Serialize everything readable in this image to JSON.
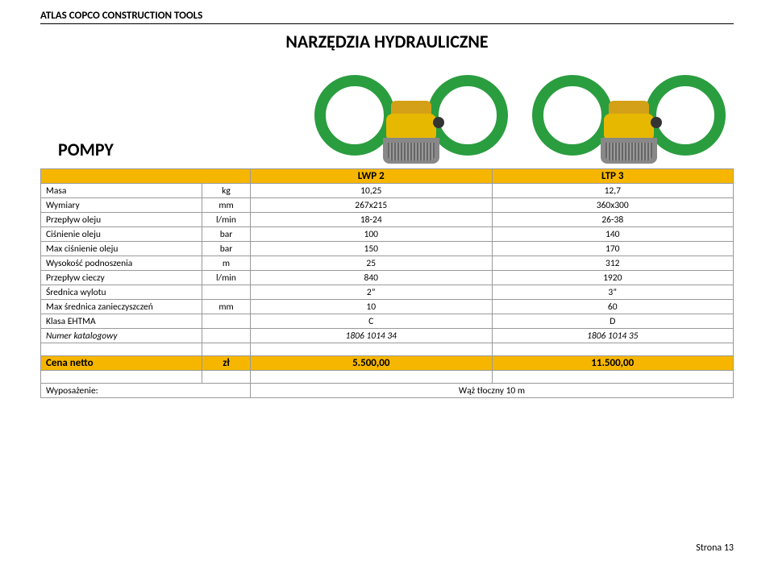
{
  "company_header": "ATLAS COPCO CONSTRUCTION TOOLS",
  "main_title": "NARZĘDZIA HYDRAULICZNE",
  "section_title": "POMPY",
  "models": {
    "m1": "LWP 2",
    "m2": "LTP 3"
  },
  "rows": {
    "masa": {
      "label": "Masa",
      "unit": "kg",
      "v1": "10,25",
      "v2": "12,7"
    },
    "wym": {
      "label": "Wymiary",
      "unit": "mm",
      "v1": "267x215",
      "v2": "360x300"
    },
    "przepo": {
      "label": "Przepływ oleju",
      "unit": "l/min",
      "v1": "18-24",
      "v2": "26-38"
    },
    "cis": {
      "label": "Ciśnienie oleju",
      "unit": "bar",
      "v1": "100",
      "v2": "140"
    },
    "maxcis": {
      "label": "Max ciśnienie oleju",
      "unit": "bar",
      "v1": "150",
      "v2": "170"
    },
    "wys": {
      "label": "Wysokość podnoszenia",
      "unit": "m",
      "v1": "25",
      "v2": "312"
    },
    "przepc": {
      "label": "Przepływ cieczy",
      "unit": "l/min",
      "v1": "840",
      "v2": "1920"
    },
    "sred": {
      "label": "Średnica wylotu",
      "unit": "",
      "v1": "2”",
      "v2": "3”"
    },
    "maxsr": {
      "label": "Max średnica zanieczyszczeń",
      "unit": "mm",
      "v1": "10",
      "v2": "60"
    },
    "klasa": {
      "label": "Klasa EHTMA",
      "unit": "",
      "v1": "C",
      "v2": "D"
    },
    "numer": {
      "label": "Numer katalogowy",
      "unit": "",
      "v1": "1806 1014 34",
      "v2": "1806 1014 35"
    }
  },
  "price": {
    "label": "Cena netto",
    "unit": "zł",
    "v1": "5.500,00",
    "v2": "11.500,00"
  },
  "equipment": {
    "label": "Wyposażenie:",
    "value": "Wąż tłoczny 10 m"
  },
  "footer": "Strona 13",
  "colors": {
    "accent": "#f6b600",
    "hose": "#2a9d3f",
    "border": "#999999"
  }
}
